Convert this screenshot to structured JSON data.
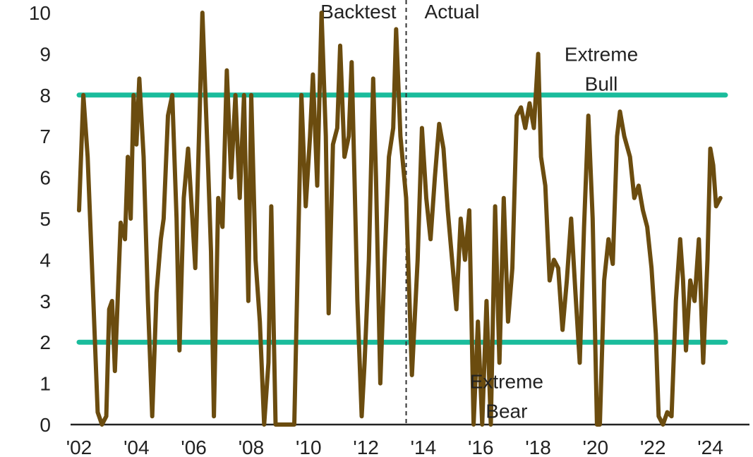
{
  "chart_data": {
    "type": "line",
    "title": "",
    "xlabel": "",
    "ylabel": "",
    "xlim": [
      2002,
      2024.7
    ],
    "ylim": [
      0,
      10
    ],
    "grid": false,
    "x_tick_labels": [
      {
        "x": 2002,
        "label": "'02"
      },
      {
        "x": 2004,
        "label": "'04"
      },
      {
        "x": 2006,
        "label": "'06"
      },
      {
        "x": 2008,
        "label": "'08"
      },
      {
        "x": 2010,
        "label": "'10"
      },
      {
        "x": 2012,
        "label": "'12"
      },
      {
        "x": 2014,
        "label": "'14"
      },
      {
        "x": 2016,
        "label": "'16"
      },
      {
        "x": 2018,
        "label": "'18"
      },
      {
        "x": 2020,
        "label": "'20"
      },
      {
        "x": 2022,
        "label": "'22"
      },
      {
        "x": 2024,
        "label": "'24"
      }
    ],
    "y_ticks": [
      0,
      1,
      2,
      3,
      4,
      5,
      6,
      7,
      8,
      9,
      10
    ],
    "reference_lines": [
      {
        "name": "Extreme Bull",
        "y": 8,
        "color": "#1abc9c"
      },
      {
        "name": "Extreme Bear",
        "y": 2,
        "color": "#1abc9c"
      }
    ],
    "divider": {
      "x": 2013.4,
      "left_label": "Backtest",
      "right_label": "Actual"
    },
    "annotations": [
      {
        "lines": [
          "Extreme",
          "Bull"
        ],
        "x": 2020.2,
        "y": 9.0
      },
      {
        "lines": [
          "Extreme",
          "Bear"
        ],
        "x": 2016.9,
        "y": 1.05
      }
    ],
    "series": [
      {
        "color": "#6b4c0f",
        "points": [
          [
            2002.0,
            5.2
          ],
          [
            2002.15,
            8.0
          ],
          [
            2002.3,
            6.5
          ],
          [
            2002.5,
            3.0
          ],
          [
            2002.65,
            0.3
          ],
          [
            2002.8,
            0.0
          ],
          [
            2002.95,
            0.2
          ],
          [
            2003.05,
            2.8
          ],
          [
            2003.15,
            3.0
          ],
          [
            2003.25,
            1.3
          ],
          [
            2003.45,
            4.9
          ],
          [
            2003.6,
            4.5
          ],
          [
            2003.7,
            6.5
          ],
          [
            2003.8,
            5.0
          ],
          [
            2003.9,
            8.0
          ],
          [
            2004.0,
            6.8
          ],
          [
            2004.1,
            8.4
          ],
          [
            2004.25,
            6.5
          ],
          [
            2004.4,
            3.0
          ],
          [
            2004.55,
            0.2
          ],
          [
            2004.7,
            3.2
          ],
          [
            2004.85,
            4.5
          ],
          [
            2004.95,
            5.0
          ],
          [
            2005.1,
            7.5
          ],
          [
            2005.25,
            8.0
          ],
          [
            2005.4,
            5.0
          ],
          [
            2005.5,
            1.8
          ],
          [
            2005.65,
            5.5
          ],
          [
            2005.8,
            6.7
          ],
          [
            2005.95,
            5.0
          ],
          [
            2006.05,
            3.8
          ],
          [
            2006.2,
            7.5
          ],
          [
            2006.3,
            10.0
          ],
          [
            2006.5,
            6.2
          ],
          [
            2006.6,
            4.2
          ],
          [
            2006.7,
            0.2
          ],
          [
            2006.85,
            5.5
          ],
          [
            2007.0,
            4.8
          ],
          [
            2007.15,
            8.6
          ],
          [
            2007.3,
            6.0
          ],
          [
            2007.45,
            8.0
          ],
          [
            2007.6,
            5.5
          ],
          [
            2007.75,
            8.0
          ],
          [
            2007.9,
            3.0
          ],
          [
            2008.0,
            8.0
          ],
          [
            2008.15,
            4.0
          ],
          [
            2008.3,
            2.5
          ],
          [
            2008.45,
            0.0
          ],
          [
            2008.6,
            1.5
          ],
          [
            2008.7,
            5.3
          ],
          [
            2008.85,
            0.0
          ],
          [
            2009.0,
            0.0
          ],
          [
            2009.3,
            0.0
          ],
          [
            2009.5,
            0.0
          ],
          [
            2009.75,
            8.0
          ],
          [
            2009.9,
            5.3
          ],
          [
            2010.05,
            7.0
          ],
          [
            2010.15,
            8.5
          ],
          [
            2010.3,
            5.8
          ],
          [
            2010.45,
            10.0
          ],
          [
            2010.6,
            7.0
          ],
          [
            2010.7,
            2.7
          ],
          [
            2010.85,
            6.8
          ],
          [
            2011.0,
            7.2
          ],
          [
            2011.1,
            9.2
          ],
          [
            2011.25,
            6.5
          ],
          [
            2011.4,
            7.0
          ],
          [
            2011.5,
            8.8
          ],
          [
            2011.6,
            6.0
          ],
          [
            2011.7,
            3.0
          ],
          [
            2011.85,
            0.2
          ],
          [
            2011.95,
            1.5
          ],
          [
            2012.1,
            4.0
          ],
          [
            2012.25,
            8.4
          ],
          [
            2012.35,
            6.0
          ],
          [
            2012.5,
            1.0
          ],
          [
            2012.65,
            4.0
          ],
          [
            2012.8,
            6.5
          ],
          [
            2012.95,
            7.2
          ],
          [
            2013.05,
            9.6
          ],
          [
            2013.2,
            7.0
          ],
          [
            2013.4,
            5.5
          ],
          [
            2013.6,
            1.2
          ],
          [
            2013.8,
            4.0
          ],
          [
            2013.95,
            7.2
          ],
          [
            2014.1,
            5.5
          ],
          [
            2014.25,
            4.5
          ],
          [
            2014.4,
            6.0
          ],
          [
            2014.55,
            7.3
          ],
          [
            2014.7,
            6.7
          ],
          [
            2014.85,
            5.2
          ],
          [
            2015.0,
            4.0
          ],
          [
            2015.15,
            2.8
          ],
          [
            2015.3,
            5.0
          ],
          [
            2015.45,
            4.0
          ],
          [
            2015.6,
            5.2
          ],
          [
            2015.75,
            0.0
          ],
          [
            2015.9,
            2.5
          ],
          [
            2016.05,
            0.0
          ],
          [
            2016.2,
            3.0
          ],
          [
            2016.35,
            0.0
          ],
          [
            2016.5,
            5.3
          ],
          [
            2016.65,
            1.5
          ],
          [
            2016.8,
            5.5
          ],
          [
            2016.95,
            2.5
          ],
          [
            2017.1,
            3.8
          ],
          [
            2017.25,
            7.5
          ],
          [
            2017.4,
            7.7
          ],
          [
            2017.55,
            7.2
          ],
          [
            2017.7,
            7.8
          ],
          [
            2017.85,
            7.2
          ],
          [
            2018.0,
            9.0
          ],
          [
            2018.1,
            6.5
          ],
          [
            2018.25,
            5.8
          ],
          [
            2018.4,
            3.5
          ],
          [
            2018.55,
            4.0
          ],
          [
            2018.7,
            3.8
          ],
          [
            2018.85,
            2.3
          ],
          [
            2019.0,
            3.5
          ],
          [
            2019.15,
            5.0
          ],
          [
            2019.3,
            3.2
          ],
          [
            2019.45,
            1.5
          ],
          [
            2019.6,
            4.8
          ],
          [
            2019.75,
            7.5
          ],
          [
            2019.9,
            5.0
          ],
          [
            2020.05,
            0.0
          ],
          [
            2020.15,
            0.0
          ],
          [
            2020.3,
            3.5
          ],
          [
            2020.45,
            4.5
          ],
          [
            2020.6,
            3.9
          ],
          [
            2020.75,
            7.0
          ],
          [
            2020.85,
            7.6
          ],
          [
            2021.0,
            7.0
          ],
          [
            2021.2,
            6.5
          ],
          [
            2021.35,
            5.5
          ],
          [
            2021.5,
            5.8
          ],
          [
            2021.65,
            5.2
          ],
          [
            2021.8,
            4.8
          ],
          [
            2021.95,
            3.8
          ],
          [
            2022.1,
            2.2
          ],
          [
            2022.2,
            0.2
          ],
          [
            2022.35,
            0.0
          ],
          [
            2022.5,
            0.3
          ],
          [
            2022.65,
            0.2
          ],
          [
            2022.8,
            3.0
          ],
          [
            2022.95,
            4.5
          ],
          [
            2023.05,
            3.5
          ],
          [
            2023.15,
            1.8
          ],
          [
            2023.3,
            3.5
          ],
          [
            2023.45,
            3.0
          ],
          [
            2023.6,
            4.5
          ],
          [
            2023.75,
            1.5
          ],
          [
            2023.9,
            4.0
          ],
          [
            2024.0,
            6.7
          ],
          [
            2024.1,
            6.3
          ],
          [
            2024.2,
            5.3
          ],
          [
            2024.35,
            5.5
          ]
        ]
      }
    ]
  }
}
